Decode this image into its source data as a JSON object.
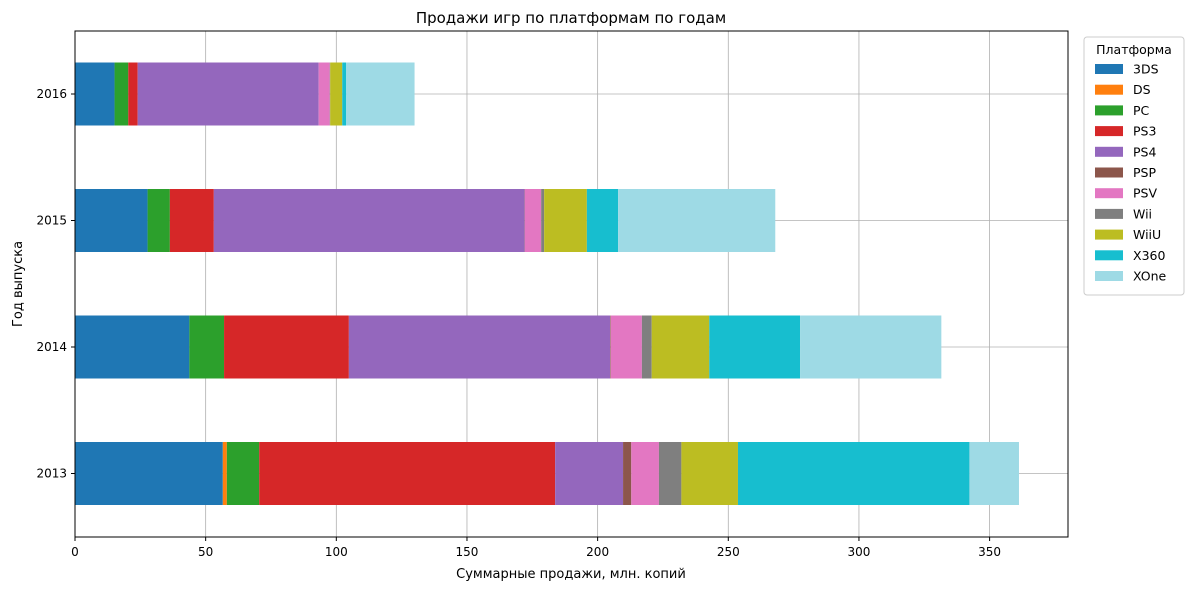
{
  "chart_data": {
    "type": "bar",
    "orientation": "horizontal",
    "stacked": true,
    "title": "Продажи игр по платформам по годам",
    "xlabel": "Суммарные продажи, млн. копий",
    "ylabel": "Год выпуска",
    "xlim": [
      0,
      380
    ],
    "xticks": [
      0,
      50,
      100,
      150,
      200,
      250,
      300,
      350
    ],
    "grid": true,
    "legend_title": "Платформа",
    "legend_position": "outside-top-right",
    "categories": [
      "2013",
      "2014",
      "2015",
      "2016"
    ],
    "series": [
      {
        "name": "3DS",
        "color": "#1f77b4",
        "values": [
          56.57,
          43.76,
          27.78,
          15.14
        ]
      },
      {
        "name": "DS",
        "color": "#ff7f0e",
        "values": [
          1.54,
          0,
          0,
          0
        ]
      },
      {
        "name": "PC",
        "color": "#2ca02c",
        "values": [
          12.38,
          13.28,
          8.52,
          5.25
        ]
      },
      {
        "name": "PS3",
        "color": "#d62728",
        "values": [
          113.25,
          47.76,
          16.82,
          3.6
        ]
      },
      {
        "name": "PS4",
        "color": "#9467bd",
        "values": [
          25.99,
          100.0,
          118.9,
          69.25
        ]
      },
      {
        "name": "PSP",
        "color": "#8c564b",
        "values": [
          3.14,
          0.24,
          0.12,
          0
        ]
      },
      {
        "name": "PSV",
        "color": "#e377c2",
        "values": [
          10.59,
          11.9,
          6.25,
          4.25
        ]
      },
      {
        "name": "Wii",
        "color": "#7f7f7f",
        "values": [
          8.59,
          3.75,
          1.14,
          0.18
        ]
      },
      {
        "name": "WiiU",
        "color": "#bcbd22",
        "values": [
          21.65,
          22.03,
          16.35,
          4.6
        ]
      },
      {
        "name": "X360",
        "color": "#17becf",
        "values": [
          88.58,
          34.74,
          11.96,
          1.52
        ]
      },
      {
        "name": "XOne",
        "color": "#9edae5",
        "values": [
          18.96,
          54.07,
          60.14,
          26.15
        ]
      }
    ]
  }
}
